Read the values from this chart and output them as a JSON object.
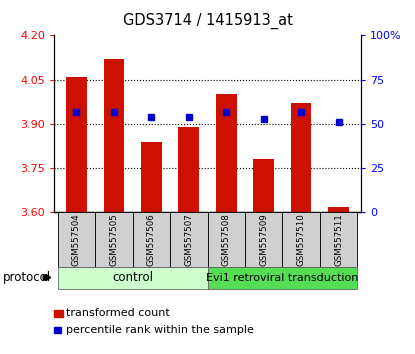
{
  "title": "GDS3714 / 1415913_at",
  "samples": [
    "GSM557504",
    "GSM557505",
    "GSM557506",
    "GSM557507",
    "GSM557508",
    "GSM557509",
    "GSM557510",
    "GSM557511"
  ],
  "bar_values": [
    4.06,
    4.12,
    3.84,
    3.89,
    4.0,
    3.78,
    3.97,
    3.62
  ],
  "percentile_values": [
    57,
    57,
    54,
    54,
    57,
    53,
    57,
    51
  ],
  "ylim_left": [
    3.6,
    4.2
  ],
  "ylim_right": [
    0,
    100
  ],
  "yticks_left": [
    3.6,
    3.75,
    3.9,
    4.05,
    4.2
  ],
  "yticks_right": [
    0,
    25,
    50,
    75,
    100
  ],
  "ytick_right_labels": [
    "0",
    "25",
    "50",
    "75",
    "100%"
  ],
  "bar_color": "#cc1100",
  "marker_color": "#0000cc",
  "control_label": "control",
  "evi1_label": "Evi1 retroviral transduction",
  "protocol_label": "protocol",
  "legend_bar_label": "transformed count",
  "legend_marker_label": "percentile rank within the sample",
  "control_color": "#ccffcc",
  "evi1_color": "#55dd55",
  "bar_bottom": 3.6,
  "n_control": 4,
  "n_evi1": 4
}
